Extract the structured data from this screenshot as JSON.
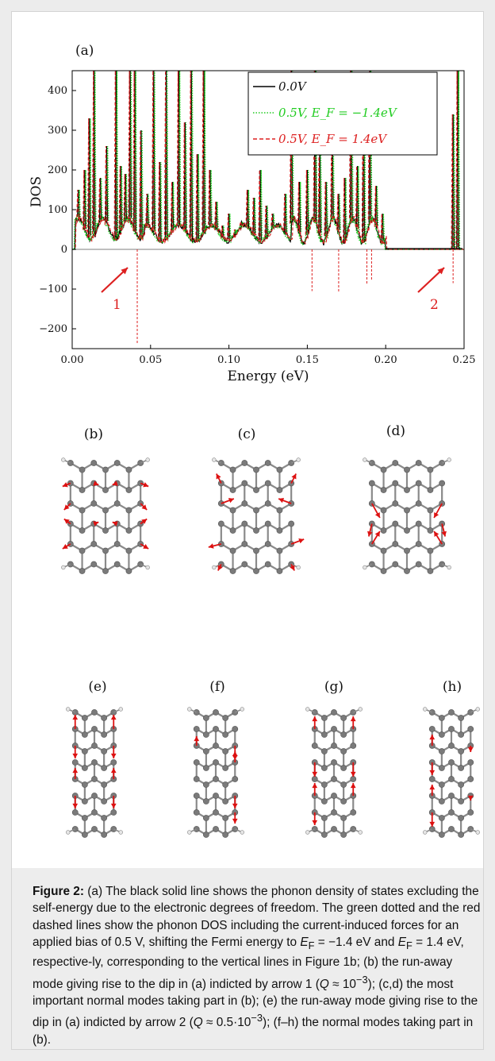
{
  "figure": {
    "panel_labels": [
      "(a)",
      "(b)",
      "(c)",
      "(d)",
      "(e)",
      "(f)",
      "(g)",
      "(h)"
    ],
    "arrow_labels": [
      "1",
      "2"
    ],
    "colors": {
      "solid": "#000000",
      "dotted": "#22cc22",
      "dashed": "#dd2020",
      "atom": "#7a7a7a",
      "force_arrow": "#dd1111"
    }
  },
  "chart_data": {
    "type": "line",
    "xlabel": "Energy (eV)",
    "ylabel": "DOS",
    "xlim": [
      0.0,
      0.25
    ],
    "ylim": [
      -250,
      450
    ],
    "xticks": [
      "0.00",
      "0.05",
      "0.10",
      "0.15",
      "0.20",
      "0.25"
    ],
    "yticks": [
      "400",
      "300",
      "200",
      "100",
      "0",
      "−100",
      "−200"
    ],
    "legend": {
      "placement": "top-right",
      "entries": [
        "0.0V",
        "0.5V, E_F = −1.4eV",
        "0.5V, E_F = 1.4eV"
      ]
    },
    "series": [
      {
        "name": "0.0V",
        "style": "solid",
        "color": "#000000"
      },
      {
        "name": "0.5V, E_F = −1.4eV",
        "style": "dotted",
        "color": "#22cc22"
      },
      {
        "name": "0.5V, E_F = 1.4eV",
        "style": "dashed",
        "color": "#dd2020"
      }
    ],
    "peaks_x": [
      0.004,
      0.008,
      0.011,
      0.014,
      0.018,
      0.022,
      0.028,
      0.031,
      0.034,
      0.037,
      0.04,
      0.044,
      0.048,
      0.052,
      0.056,
      0.06,
      0.064,
      0.068,
      0.072,
      0.076,
      0.08,
      0.084,
      0.088,
      0.092,
      0.096,
      0.1,
      0.104,
      0.108,
      0.112,
      0.116,
      0.12,
      0.124,
      0.128,
      0.132,
      0.136,
      0.14,
      0.145,
      0.15,
      0.155,
      0.158,
      0.162,
      0.166,
      0.17,
      0.174,
      0.178,
      0.182,
      0.186,
      0.19,
      0.194,
      0.198,
      0.243,
      0.246
    ],
    "peaks_y": [
      150,
      200,
      330,
      450,
      180,
      260,
      450,
      210,
      190,
      450,
      450,
      300,
      140,
      450,
      220,
      450,
      170,
      450,
      320,
      450,
      240,
      450,
      200,
      120,
      60,
      90,
      50,
      70,
      150,
      130,
      200,
      110,
      90,
      60,
      140,
      450,
      170,
      200,
      450,
      260,
      170,
      290,
      140,
      180,
      450,
      210,
      400,
      450,
      160,
      90,
      340,
      450
    ],
    "negative_dips": [
      {
        "x": 0.0415,
        "y": -240
      },
      {
        "x": 0.153,
        "y": -105
      },
      {
        "x": 0.17,
        "y": -110
      },
      {
        "x": 0.188,
        "y": -90
      },
      {
        "x": 0.191,
        "y": -80
      },
      {
        "x": 0.243,
        "y": -85
      }
    ]
  },
  "caption": {
    "label": "Figure 2:",
    "parts": [
      " (a) The black solid line shows the phonon density of states excluding the self-energy due to the electronic degrees of freedom. The green dotted and the red dashed lines show the phonon DOS including the current-induced forces for an applied bias of 0.5 V, shifting the Fermi energy to ",
      "E",
      "F",
      " = −1.4 eV and ",
      "E",
      "F",
      " = 1.4 eV, respective-ly, corresponding to the vertical lines in Figure 1b; (b) the run-away mode giving rise to the dip in (a) indicted by arrow 1 (",
      "Q",
      " ≈ 10",
      "−3",
      "); (c,d) the most important normal modes taking part in (b); (e) the run-away mode giving rise to the dip in (a) indicted by arrow 2 (",
      "Q",
      " ≈ 0.5·10",
      "−3",
      "); (f–h) the normal modes taking part in (b)."
    ]
  }
}
